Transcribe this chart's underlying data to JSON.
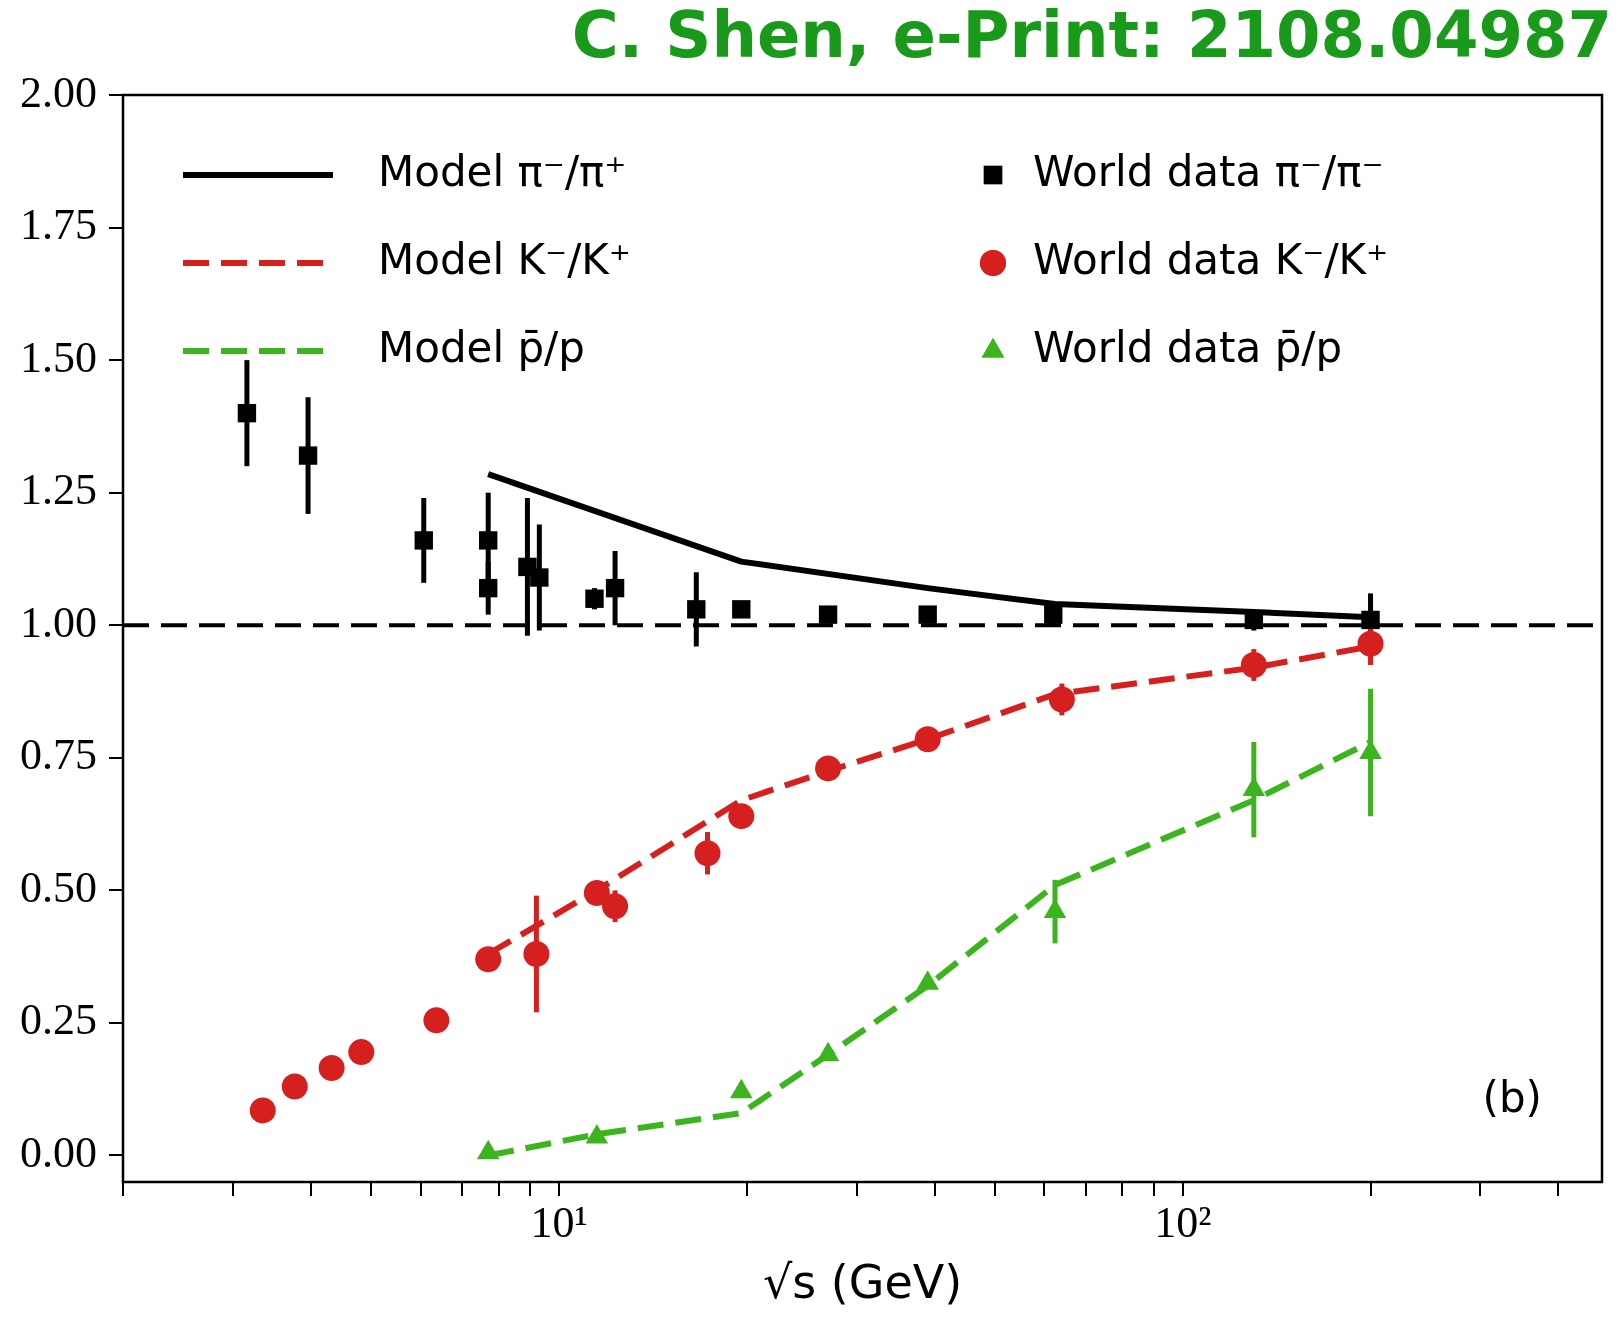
{
  "chart_data": {
    "type": "scatter",
    "xlabel": "√s (GeV)",
    "log": "x",
    "grid": false,
    "legend": "top",
    "xlim": [
      2,
      470
    ],
    "xticks": [
      {
        "value": 2,
        "label": null
      },
      {
        "value": 3,
        "label": null
      },
      {
        "value": 4,
        "label": null
      },
      {
        "value": 5,
        "label": null
      },
      {
        "value": 6,
        "label": null
      },
      {
        "value": 7,
        "label": null
      },
      {
        "value": 8,
        "label": null
      },
      {
        "value": 9,
        "label": null
      },
      {
        "value": 10,
        "label": "10¹"
      },
      {
        "value": 20,
        "label": null
      },
      {
        "value": 30,
        "label": null
      },
      {
        "value": 40,
        "label": null
      },
      {
        "value": 50,
        "label": null
      },
      {
        "value": 60,
        "label": null
      },
      {
        "value": 70,
        "label": null
      },
      {
        "value": 80,
        "label": null
      },
      {
        "value": 90,
        "label": null
      },
      {
        "value": 100,
        "label": "10²"
      },
      {
        "value": 200,
        "label": null
      },
      {
        "value": 300,
        "label": null
      },
      {
        "value": 400,
        "label": null
      }
    ],
    "ylim": [
      -0.05,
      2
    ],
    "yticks": [
      {
        "value": 0,
        "label": "0.00"
      },
      {
        "value": 0.25,
        "label": "0.25"
      },
      {
        "value": 0.5,
        "label": "0.50"
      },
      {
        "value": 0.75,
        "label": "0.75"
      },
      {
        "value": 1,
        "label": "1.00"
      },
      {
        "value": 1.25,
        "label": "1.25"
      },
      {
        "value": 1.5,
        "label": "1.50"
      },
      {
        "value": 1.75,
        "label": "1.75"
      },
      {
        "value": 2,
        "label": "2.00"
      }
    ],
    "ref_lines": [
      {
        "axis": "y",
        "value": 1,
        "color": "#000000",
        "line_style": "dashed"
      }
    ],
    "annotations": [
      "C. Shen, e-Print: 2108.04987",
      "(b)"
    ],
    "series": [
      {
        "name": "Model π⁻/π⁺",
        "type": "line",
        "color": "#000000",
        "line_style": "solid",
        "marker": "none",
        "x": [
          7.7,
          19.6,
          39,
          62.4,
          130,
          200
        ],
        "values": [
          1.285,
          1.12,
          1.07,
          1.04,
          1.025,
          1.015
        ]
      },
      {
        "name": "Model K⁻/K⁺",
        "type": "line",
        "color": "#d62020",
        "line_style": "dashed",
        "marker": "none",
        "x": [
          7.7,
          11.5,
          19.6,
          27,
          39,
          62.4,
          130,
          200
        ],
        "values": [
          0.38,
          0.5,
          0.67,
          0.725,
          0.785,
          0.87,
          0.92,
          0.96
        ]
      },
      {
        "name": "Model p̄/p",
        "type": "line",
        "color": "#3cb41e",
        "line_style": "dashed",
        "marker": "none",
        "x": [
          7.7,
          11.5,
          19.6,
          27,
          39,
          62.4,
          130,
          200
        ],
        "values": [
          0,
          0.04,
          0.08,
          0.19,
          0.32,
          0.51,
          0.67,
          0.78
        ]
      },
      {
        "name": "World data π⁻/π⁻",
        "type": "scatter",
        "color": "#000000",
        "marker": "square",
        "x": [
          3.16,
          3.96,
          6.07,
          7.7,
          7.7,
          8.9,
          9.3,
          11.4,
          12.3,
          16.6,
          19.6,
          27,
          39,
          62,
          130,
          200
        ],
        "values": [
          1.4,
          1.32,
          1.16,
          1.16,
          1.07,
          1.11,
          1.09,
          1.05,
          1.07,
          1.03,
          1.03,
          1.02,
          1.02,
          1.02,
          1.01,
          1.01
        ],
        "errors": [
          0.1,
          0.11,
          0.08,
          0.09,
          0.05,
          0.13,
          0.1,
          0.02,
          0.07,
          0.07,
          null,
          null,
          null,
          0.02,
          0.02,
          0.05
        ]
      },
      {
        "name": "World data K⁻/K⁺",
        "type": "scatter",
        "color": "#d62020",
        "marker": "circle",
        "x": [
          3.35,
          3.77,
          4.32,
          4.82,
          6.36,
          7.7,
          9.2,
          11.5,
          12.3,
          17.3,
          19.6,
          27,
          39,
          64,
          130,
          200
        ],
        "values": [
          0.085,
          0.13,
          0.165,
          0.195,
          0.255,
          0.37,
          0.38,
          0.495,
          0.47,
          0.57,
          0.64,
          0.73,
          0.785,
          0.86,
          0.925,
          0.965
        ],
        "errors": [
          null,
          null,
          null,
          null,
          null,
          null,
          0.11,
          null,
          0.03,
          0.04,
          null,
          null,
          null,
          0.03,
          0.03,
          0.04
        ]
      },
      {
        "name": "World data p̄/p",
        "type": "scatter",
        "color": "#3cb41e",
        "marker": "triangle",
        "x": [
          7.7,
          11.5,
          19.6,
          27,
          39,
          62.4,
          130,
          200
        ],
        "values": [
          0.005,
          0.035,
          0.12,
          0.19,
          0.325,
          0.46,
          0.69,
          0.76
        ],
        "errors": [
          null,
          null,
          null,
          null,
          null,
          0.06,
          0.09,
          0.12
        ]
      }
    ]
  }
}
